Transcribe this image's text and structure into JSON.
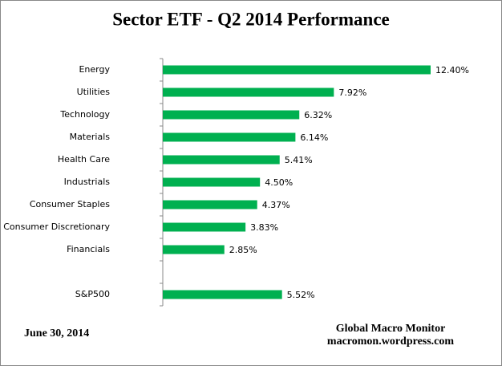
{
  "chart_data": {
    "type": "bar",
    "orientation": "horizontal",
    "title": "Sector ETF - Q2 2014 Performance",
    "categories": [
      "Energy",
      "Utilities",
      "Technology",
      "Materials",
      "Health Care",
      "Industrials",
      "Consumer Staples",
      "Consumer Discretionary",
      "Financials",
      null,
      "S&P500"
    ],
    "values": [
      12.4,
      7.92,
      6.32,
      6.14,
      5.41,
      4.5,
      4.37,
      3.83,
      2.85,
      null,
      5.52
    ],
    "value_labels": [
      "12.40%",
      "7.92%",
      "6.32%",
      "6.14%",
      "5.41%",
      "4.50%",
      "4.37%",
      "3.83%",
      "2.85%",
      null,
      "5.52%"
    ],
    "color": "#00b050",
    "date": "June 30,  2014",
    "source": [
      "Global Macro Monitor",
      "macromon.wordpress.com"
    ]
  }
}
